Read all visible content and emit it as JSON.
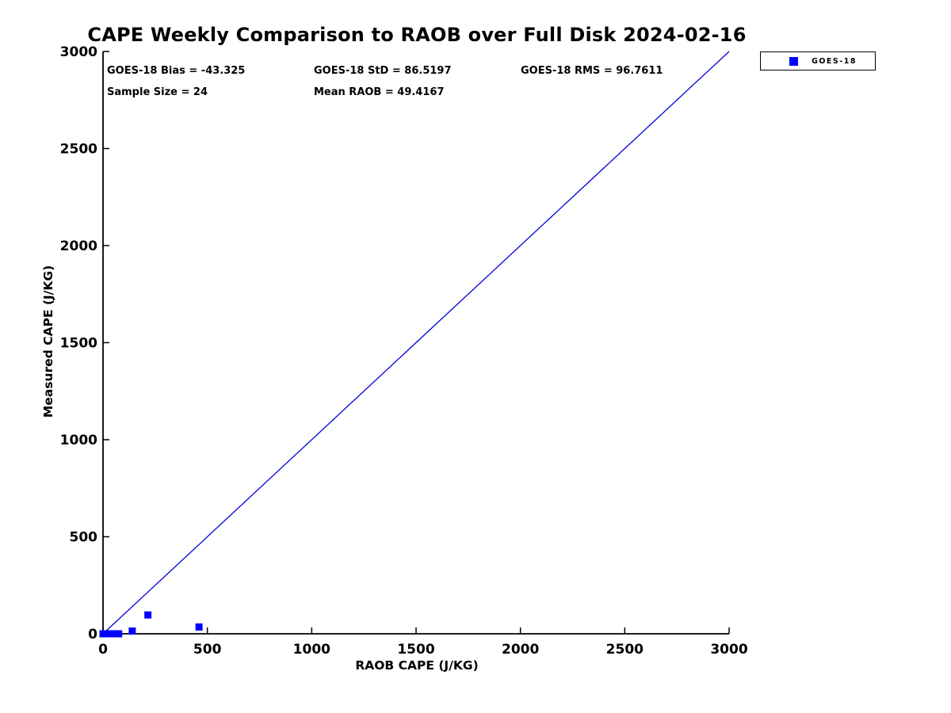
{
  "title": "CAPE Weekly Comparison to RAOB over Full Disk 2024-02-16",
  "stats": {
    "bias": "GOES-18 Bias = -43.325",
    "std": "GOES-18 StD = 86.5197",
    "rms": "GOES-18 RMS = 96.7611",
    "sample_size": "Sample Size = 24",
    "mean_raob": "Mean RAOB = 49.4167"
  },
  "legend": {
    "label": "GOES-18",
    "marker_color": "#0000ff"
  },
  "colors": {
    "marker": "#0000ff",
    "identity_line": "#0000dd",
    "axis": "#000000",
    "text": "#000000"
  },
  "chart_data": {
    "type": "scatter",
    "title": "CAPE Weekly Comparison to RAOB over Full Disk 2024-02-16",
    "xlabel": "RAOB CAPE (J/KG)",
    "ylabel": "Measured CAPE (J/KG)",
    "xlim": [
      0,
      3000
    ],
    "ylim": [
      0,
      3000
    ],
    "xticks": [
      0,
      500,
      1000,
      1500,
      2000,
      2500,
      3000
    ],
    "yticks": [
      0,
      500,
      1000,
      1500,
      2000,
      2500,
      3000
    ],
    "grid": false,
    "legend_position": "top-right-outside",
    "series": [
      {
        "name": "GOES-18",
        "marker": "square",
        "color": "#0000ff",
        "points": [
          [
            0,
            0
          ],
          [
            0,
            0
          ],
          [
            1,
            0
          ],
          [
            2,
            0
          ],
          [
            3,
            0
          ],
          [
            4,
            0
          ],
          [
            5,
            0
          ],
          [
            6,
            0
          ],
          [
            8,
            0
          ],
          [
            10,
            0
          ],
          [
            12,
            0
          ],
          [
            14,
            0
          ],
          [
            16,
            0
          ],
          [
            18,
            0
          ],
          [
            20,
            0
          ],
          [
            22,
            0
          ],
          [
            25,
            0
          ],
          [
            30,
            0
          ],
          [
            40,
            0
          ],
          [
            60,
            0
          ],
          [
            75,
            0
          ],
          [
            140,
            14
          ],
          [
            215,
            97
          ],
          [
            460,
            35
          ]
        ]
      }
    ],
    "reference_line": {
      "name": "identity-line",
      "from": [
        0,
        0
      ],
      "to": [
        3000,
        3000
      ],
      "color": "#0000dd"
    }
  }
}
